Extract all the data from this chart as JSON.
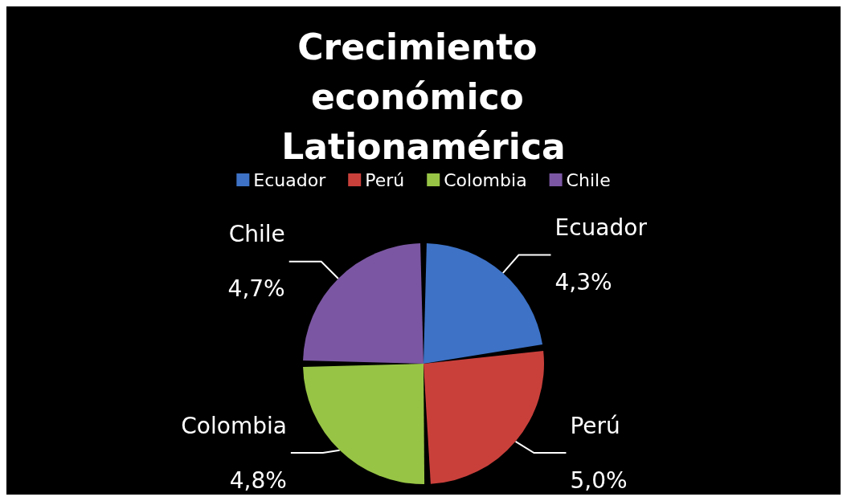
{
  "chart_data": {
    "type": "pie",
    "title": "Crecimiento económico Lationamérica",
    "categories": [
      "Ecuador",
      "Perú",
      "Colombia",
      "Chile"
    ],
    "values": [
      4.3,
      5.0,
      4.8,
      4.7
    ],
    "colors": [
      "#3d72c6",
      "#c9403b",
      "#97c445",
      "#7b57a3"
    ],
    "value_labels": [
      "4,3%",
      "5,0%",
      "4,8%",
      "4,7%"
    ],
    "legend": "top"
  }
}
